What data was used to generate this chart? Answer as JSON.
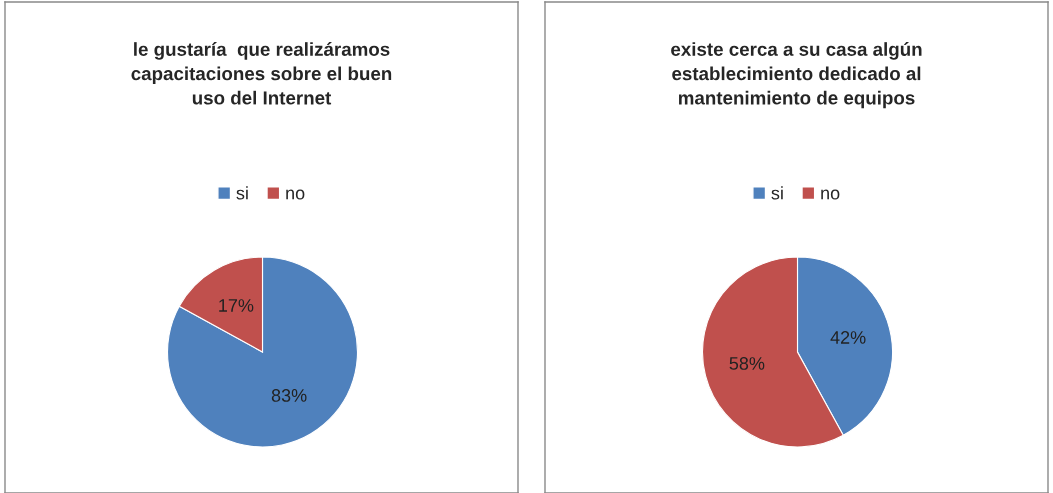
{
  "chart_data": [
    {
      "type": "pie",
      "title": "le gustaría  que realizáramos\ncapacitaciones sobre el buen\nuso del Internet",
      "categories": [
        "si",
        "no"
      ],
      "values": [
        83,
        17
      ],
      "colors": [
        "#4f81bd",
        "#c0504d"
      ],
      "value_labels": [
        "83%",
        "17%"
      ],
      "legend": "top"
    },
    {
      "type": "pie",
      "title": "existe cerca a su casa algún\nestablecimiento dedicado al\nmantenimiento de equipos",
      "categories": [
        "si",
        "no"
      ],
      "values": [
        42,
        58
      ],
      "colors": [
        "#4f81bd",
        "#c0504d"
      ],
      "value_labels": [
        "42%",
        "58%"
      ],
      "legend": "top"
    }
  ]
}
